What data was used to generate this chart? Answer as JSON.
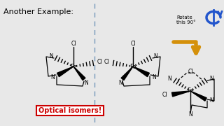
{
  "title": "Another Example:",
  "white": "#ffffff",
  "black": "#000000",
  "red": "#cc0000",
  "blue": "#2255cc",
  "gold": "#d4900a",
  "gray_blue": "#8899bb",
  "optical_isomers_text": "Optical isomers!",
  "rotate_text": "Rotate\nthis 90°"
}
